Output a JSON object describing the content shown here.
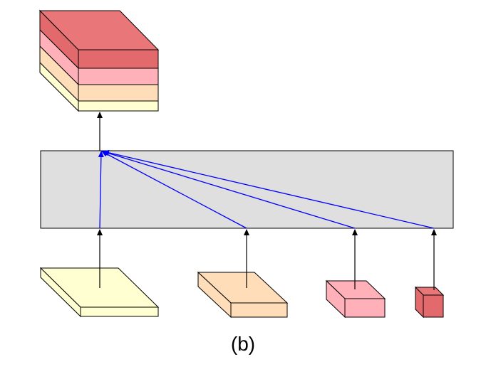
{
  "figure": {
    "caption": "(b)"
  },
  "colors": {
    "stack_top": "#E9777A",
    "stack_top_front": "#E26A6C",
    "stack_pink": "#FFB0B8",
    "stack_peach": "#FFDDB8",
    "stack_cream": "#FFFFD2",
    "fusion_box": "#DFDFDF",
    "blue_link": "#0000FF",
    "arrow": "#000000",
    "block_cream": "#FFFFD2",
    "block_peach": "#FFDDB8",
    "block_pink": "#FFB0B8",
    "block_red": "#E26A6C"
  },
  "structure": {
    "inputs": [
      "cream",
      "peach",
      "pink",
      "red"
    ],
    "output_layers": [
      "red",
      "pink",
      "peach",
      "cream"
    ]
  }
}
